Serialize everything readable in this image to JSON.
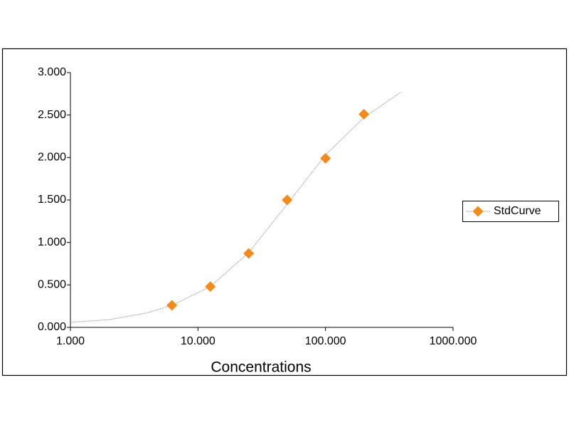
{
  "chart_data": {
    "type": "scatter",
    "x_label": "Concentrations",
    "x_scale": "log",
    "xlim": [
      1,
      1000
    ],
    "xticks": [
      {
        "value": 1,
        "label": "1.000"
      },
      {
        "value": 10,
        "label": "10.000"
      },
      {
        "value": 100,
        "label": "100.000"
      },
      {
        "value": 1000,
        "label": "1000.000"
      }
    ],
    "ylim": [
      0,
      3
    ],
    "yticks": [
      {
        "value": 0,
        "label": "0.000"
      },
      {
        "value": 0.5,
        "label": "0.500"
      },
      {
        "value": 1,
        "label": "1.000"
      },
      {
        "value": 1.5,
        "label": "1.500"
      },
      {
        "value": 2,
        "label": "2.000"
      },
      {
        "value": 2.5,
        "label": "2.500"
      },
      {
        "value": 3,
        "label": "3.000"
      }
    ],
    "grid": false,
    "legend": "right",
    "series": [
      {
        "name": "StdCurve",
        "color": "#f28a1c",
        "x": [
          6.25,
          12.5,
          25,
          50,
          100,
          200
        ],
        "values": [
          0.26,
          0.48,
          0.87,
          1.5,
          1.99,
          2.51
        ],
        "fit": {
          "color": "#999999",
          "x": [
            1,
            2,
            4,
            6.25,
            12.5,
            25,
            50,
            100,
            200,
            390
          ],
          "values": [
            0.06,
            0.09,
            0.17,
            0.26,
            0.48,
            0.88,
            1.45,
            2.03,
            2.47,
            2.77
          ]
        }
      }
    ]
  }
}
